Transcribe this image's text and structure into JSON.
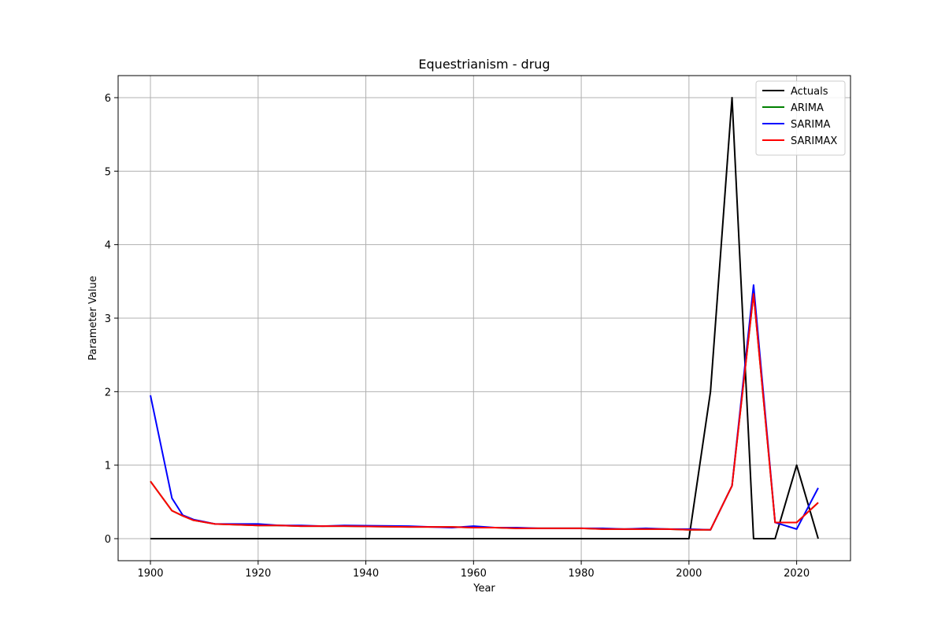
{
  "chart_data": {
    "type": "line",
    "title": "Equestrianism - drug",
    "xlabel": "Year",
    "ylabel": "Parameter Value",
    "xlim": [
      1894,
      2030
    ],
    "ylim": [
      -0.3,
      6.3
    ],
    "xticks": [
      1900,
      1920,
      1940,
      1960,
      1980,
      2000,
      2020
    ],
    "yticks": [
      0,
      1,
      2,
      3,
      4,
      5,
      6
    ],
    "grid": true,
    "legend_position": "top-right",
    "x": [
      1900,
      1904,
      1906,
      1908,
      1912,
      1920,
      1924,
      1928,
      1932,
      1936,
      1948,
      1952,
      1956,
      1960,
      1964,
      1968,
      1972,
      1976,
      1980,
      1984,
      1988,
      1992,
      1996,
      2000,
      2004,
      2008,
      2012,
      2016,
      2020,
      2024
    ],
    "series": [
      {
        "name": "Actuals",
        "color": "#000000",
        "values": [
          0,
          0,
          0,
          0,
          0,
          0,
          0,
          0,
          0,
          0,
          0,
          0,
          0,
          0,
          0,
          0,
          0,
          0,
          0,
          0,
          0,
          0,
          0,
          0,
          2.0,
          6.0,
          0,
          0,
          1.0,
          0
        ]
      },
      {
        "name": "ARIMA",
        "color": "#008000",
        "values": [
          0.78,
          0.38,
          0.31,
          0.25,
          0.2,
          0.18,
          0.18,
          0.17,
          0.17,
          0.17,
          0.16,
          0.16,
          0.16,
          0.15,
          0.15,
          0.14,
          0.14,
          0.14,
          0.14,
          0.13,
          0.13,
          0.13,
          0.13,
          0.12,
          0.12,
          0.72,
          3.33,
          0.22,
          0.22,
          0.49
        ]
      },
      {
        "name": "SARIMA",
        "color": "#0000ff",
        "values": [
          1.95,
          0.55,
          0.32,
          0.26,
          0.2,
          0.2,
          0.18,
          0.18,
          0.17,
          0.18,
          0.17,
          0.16,
          0.15,
          0.17,
          0.15,
          0.15,
          0.14,
          0.14,
          0.14,
          0.14,
          0.13,
          0.14,
          0.13,
          0.13,
          0.12,
          0.72,
          3.45,
          0.22,
          0.13,
          0.69
        ]
      },
      {
        "name": "SARIMAX",
        "color": "#ff0000",
        "values": [
          0.78,
          0.38,
          0.31,
          0.25,
          0.2,
          0.18,
          0.18,
          0.17,
          0.17,
          0.17,
          0.16,
          0.16,
          0.16,
          0.15,
          0.15,
          0.14,
          0.14,
          0.14,
          0.14,
          0.13,
          0.13,
          0.13,
          0.13,
          0.12,
          0.12,
          0.72,
          3.33,
          0.22,
          0.22,
          0.49
        ]
      }
    ]
  }
}
